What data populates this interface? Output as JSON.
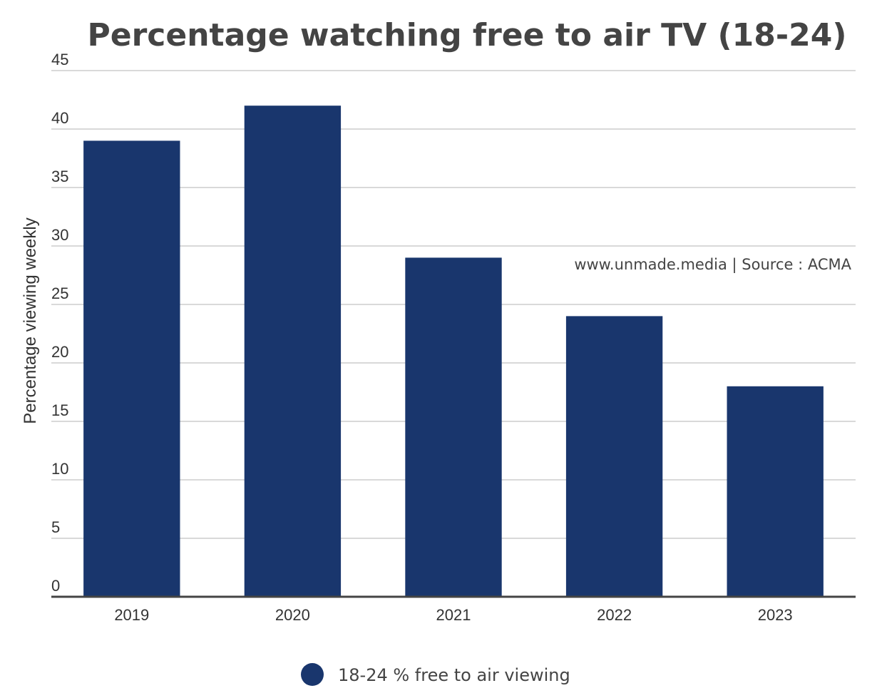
{
  "chart_data": {
    "type": "bar",
    "title": "Percentage watching free to air TV (18-24)",
    "ylabel": "Percentage viewing weekly",
    "xlabel": "",
    "categories": [
      "2019",
      "2020",
      "2021",
      "2022",
      "2023"
    ],
    "series": [
      {
        "name": "18-24 % free to air viewing",
        "values": [
          39,
          42,
          29,
          24,
          18
        ],
        "color": "#19366d"
      }
    ],
    "ylim": [
      0,
      45
    ],
    "yticks": [
      "0",
      "5",
      "10",
      "15",
      "20",
      "25",
      "30",
      "35",
      "40",
      "45"
    ],
    "grid": true,
    "legend_position": "bottom-center",
    "annotation": "www.unmade.media | Source : ACMA"
  }
}
